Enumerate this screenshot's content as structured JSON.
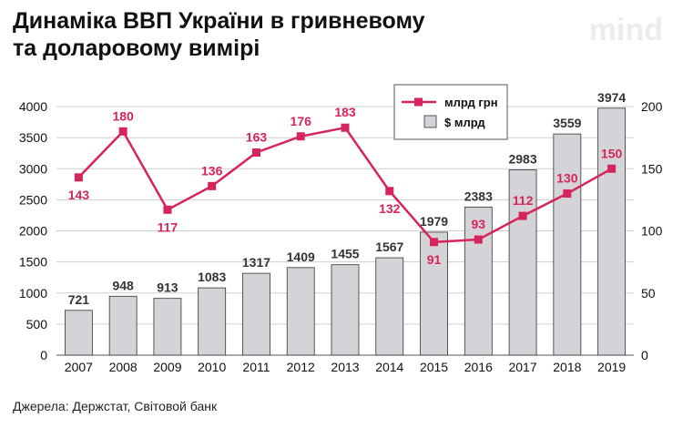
{
  "header": {
    "title_line1": "Динаміка ВВП України в гривневому",
    "title_line2": "та доларовому вимірі",
    "brand": "mind"
  },
  "footer": {
    "source": "Джерела: Держстат, Світовой банк"
  },
  "colors": {
    "bar_fill": "#d3d3d8",
    "bar_stroke": "#333333",
    "line": "#d6245c",
    "grid": "#cfcfcf"
  },
  "chart_data": {
    "type": "bar",
    "categories": [
      "2007",
      "2008",
      "2009",
      "2010",
      "2011",
      "2012",
      "2013",
      "2014",
      "2015",
      "2016",
      "2017",
      "2018",
      "2019"
    ],
    "series": [
      {
        "name": "$ млрд",
        "type": "bar",
        "axis": "left",
        "values": [
          721,
          948,
          913,
          1083,
          1317,
          1409,
          1455,
          1567,
          1979,
          2383,
          2983,
          3559,
          3974
        ]
      },
      {
        "name": "млрд грн",
        "type": "line",
        "axis": "right",
        "values": [
          143,
          180,
          117,
          136,
          163,
          176,
          183,
          132,
          91,
          93,
          112,
          130,
          150
        ]
      }
    ],
    "y_left": {
      "min": 0,
      "max": 4000,
      "ticks": [
        "0",
        "500",
        "1000",
        "1500",
        "2000",
        "2500",
        "3000",
        "3500",
        "4000"
      ]
    },
    "y_right": {
      "min": 0,
      "max": 200,
      "ticks": [
        "0",
        "50",
        "100",
        "150",
        "200"
      ]
    },
    "grid": true,
    "legend": "top-center"
  }
}
